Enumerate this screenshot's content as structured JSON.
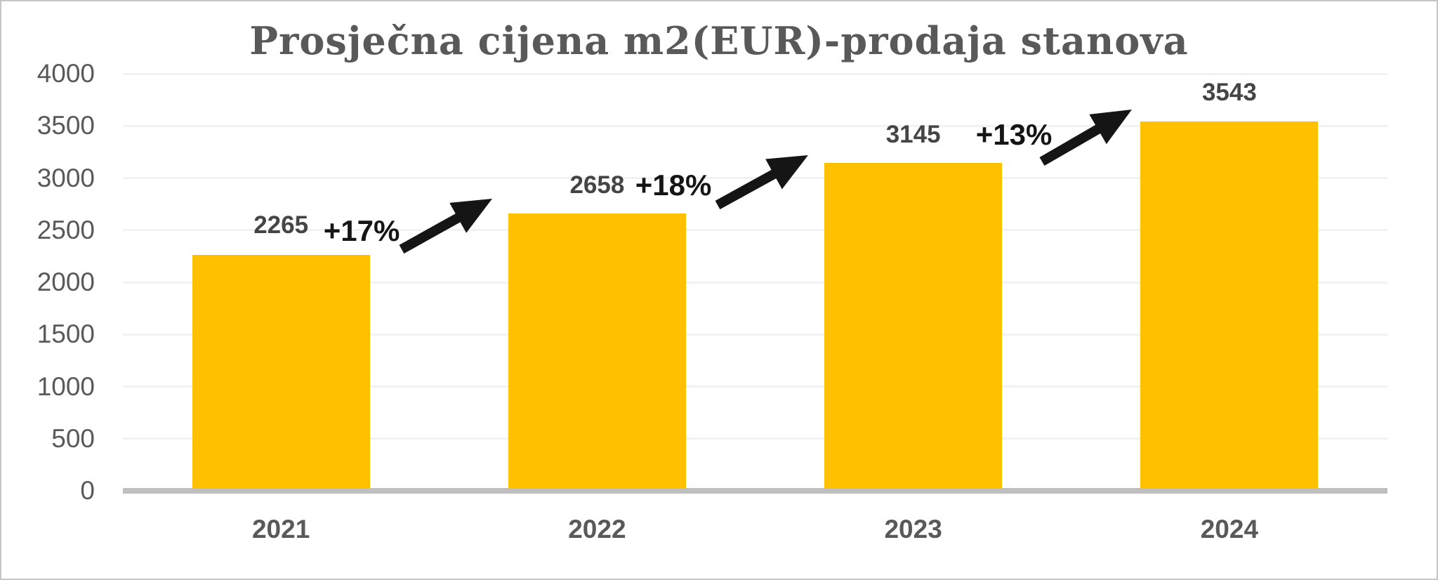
{
  "title": "Prosječna cijena m2(EUR)-prodaja stanova",
  "chart_data": {
    "type": "bar",
    "title": "Prosječna cijena m2(EUR)-prodaja stanova",
    "categories": [
      "2021",
      "2022",
      "2023",
      "2024"
    ],
    "values": [
      2265,
      2658,
      3145,
      3543
    ],
    "value_labels": [
      "2265",
      "2658",
      "3145",
      "3543"
    ],
    "pct_change_labels": [
      "+17%",
      "+18%",
      "+13%"
    ],
    "ytick_labels": [
      "0",
      "500",
      "1000",
      "1500",
      "2000",
      "2500",
      "3000",
      "3500",
      "4000"
    ],
    "yticks": [
      0,
      500,
      1000,
      1500,
      2000,
      2500,
      3000,
      3500,
      4000
    ],
    "ylim": [
      0,
      4000
    ],
    "xlabel": "",
    "ylabel": "",
    "legend": "none",
    "grid": "horizontal",
    "annotations": "black rising arrows between consecutive bars showing percent growth",
    "colors": {
      "bar_fill": "#FFC000",
      "title_text": "#595959",
      "axis_text": "#595959",
      "value_label_text": "#454545",
      "pct_label_text": "#151515",
      "arrow": "#151515",
      "gridline": "#f2f2f2",
      "baseline": "#bfbfbf",
      "frame_border": "#c6c6c6",
      "background": "#ffffff"
    }
  }
}
